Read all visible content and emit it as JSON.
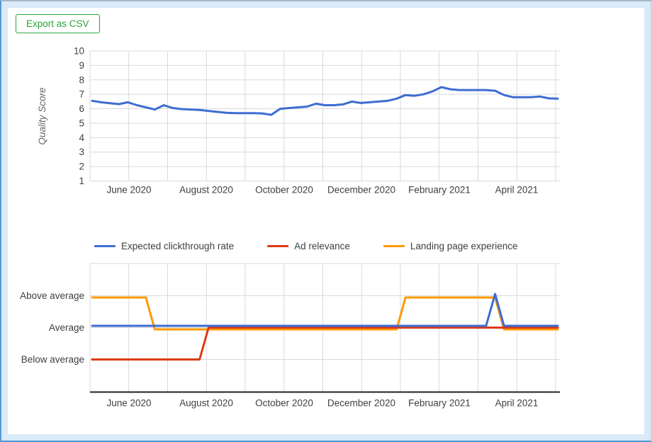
{
  "frame": {
    "background": "#d9eaf8",
    "panel_background": "#ffffff",
    "border_top": "#a9b6c3",
    "border_left": "#569bd5",
    "border_bottom": "#4d95d0",
    "border_right": "#bdd9ee"
  },
  "toolbar": {
    "export_label": "Export as CSV",
    "accent_green": "#2ba636"
  },
  "text_colors": {
    "tick": "#424242",
    "month": "#3c4043",
    "row_label": "#3c4043",
    "axis_title": "#5f6368",
    "legend": "#3c4043"
  },
  "grid": {
    "line": "#d9d9d9",
    "axis": "#202124"
  },
  "chart_data": [
    {
      "type": "line",
      "name": "quality-score-trend",
      "title": "",
      "xlabel": "",
      "ylabel": "Quality Score",
      "ylim": [
        1,
        10
      ],
      "y_ticks": [
        1,
        2,
        3,
        4,
        5,
        6,
        7,
        8,
        9,
        10
      ],
      "grid": "on",
      "x_labels": [
        "June 2020",
        "August 2020",
        "October 2020",
        "December 2020",
        "February 2021",
        "April 2021"
      ],
      "series": [
        {
          "name": "Quality Score",
          "color": "#3d6dd2",
          "values": [
            6.55,
            6.45,
            6.38,
            6.32,
            6.45,
            6.25,
            6.1,
            5.95,
            6.25,
            6.05,
            5.98,
            5.95,
            5.92,
            5.85,
            5.78,
            5.72,
            5.7,
            5.7,
            5.7,
            5.68,
            5.58,
            6.0,
            6.05,
            6.1,
            6.15,
            6.35,
            6.25,
            6.25,
            6.3,
            6.5,
            6.4,
            6.45,
            6.5,
            6.55,
            6.7,
            6.95,
            6.9,
            7.0,
            7.2,
            7.5,
            7.35,
            7.3,
            7.3,
            7.3,
            7.3,
            7.25,
            6.95,
            6.8,
            6.8,
            6.8,
            6.85,
            6.72,
            6.7
          ]
        }
      ]
    },
    {
      "type": "line",
      "name": "component-status-trend",
      "title": "",
      "xlabel": "",
      "ylabel": "",
      "y_categories": [
        "Above average",
        "Average",
        "Below average"
      ],
      "level_labels": {
        "0": "Below average",
        "1": "Average",
        "2": "Above average"
      },
      "legend_position": "top",
      "grid": "on",
      "x_labels": [
        "June 2020",
        "August 2020",
        "October 2020",
        "December 2020",
        "February 2021",
        "April 2021"
      ],
      "series": [
        {
          "name": "Expected clickthrough rate",
          "color": "#3d6dd2",
          "levels": [
            1,
            1,
            1,
            1,
            1,
            1,
            1,
            1,
            1,
            1,
            1,
            1,
            1,
            1,
            1,
            1,
            1,
            1,
            1,
            1,
            1,
            1,
            1,
            1,
            1,
            1,
            1,
            1,
            1,
            1,
            1,
            1,
            1,
            1,
            1,
            1,
            1,
            1,
            1,
            1,
            1,
            1,
            1,
            1,
            1,
            2,
            1,
            1,
            1,
            1,
            1,
            1,
            1
          ]
        },
        {
          "name": "Ad relevance",
          "color": "#dc3912",
          "levels": [
            0,
            0,
            0,
            0,
            0,
            0,
            0,
            0,
            0,
            0,
            0,
            0,
            0,
            1,
            1,
            1,
            1,
            1,
            1,
            1,
            1,
            1,
            1,
            1,
            1,
            1,
            1,
            1,
            1,
            1,
            1,
            1,
            1,
            1,
            1,
            1,
            1,
            1,
            1,
            1,
            1,
            1,
            1,
            1,
            1,
            1,
            1,
            1,
            1,
            1,
            1,
            1,
            1
          ]
        },
        {
          "name": "Landing page experience",
          "color": "#ff9900",
          "levels": [
            2,
            2,
            2,
            2,
            2,
            2,
            2,
            1,
            1,
            1,
            1,
            1,
            1,
            1,
            1,
            1,
            1,
            1,
            1,
            1,
            1,
            1,
            1,
            1,
            1,
            1,
            1,
            1,
            1,
            1,
            1,
            1,
            1,
            1,
            1,
            2,
            2,
            2,
            2,
            2,
            2,
            2,
            2,
            2,
            2,
            2,
            1,
            1,
            1,
            1,
            1,
            1,
            1
          ]
        }
      ]
    }
  ]
}
